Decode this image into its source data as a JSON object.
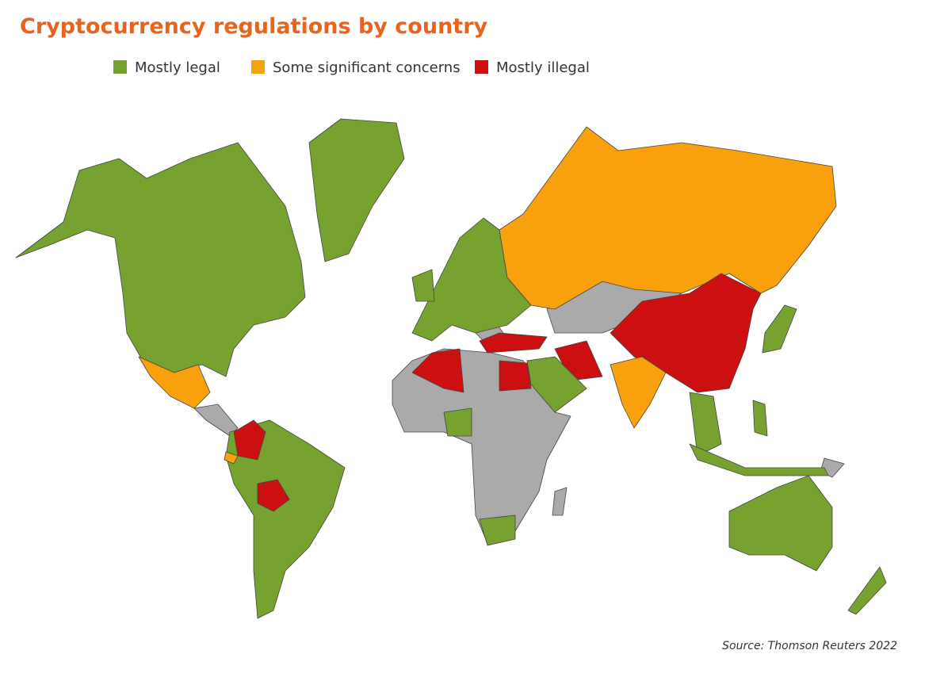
{
  "title": "Cryptocurrency regulations by country",
  "legend": [
    {
      "label": "Mostly legal",
      "color": "#76a22f"
    },
    {
      "label": "Some significant concerns",
      "color": "#f9a10c"
    },
    {
      "label": "Mostly illegal",
      "color": "#cc0f10"
    }
  ],
  "source": "Source: Thomson Reuters 2022"
}
